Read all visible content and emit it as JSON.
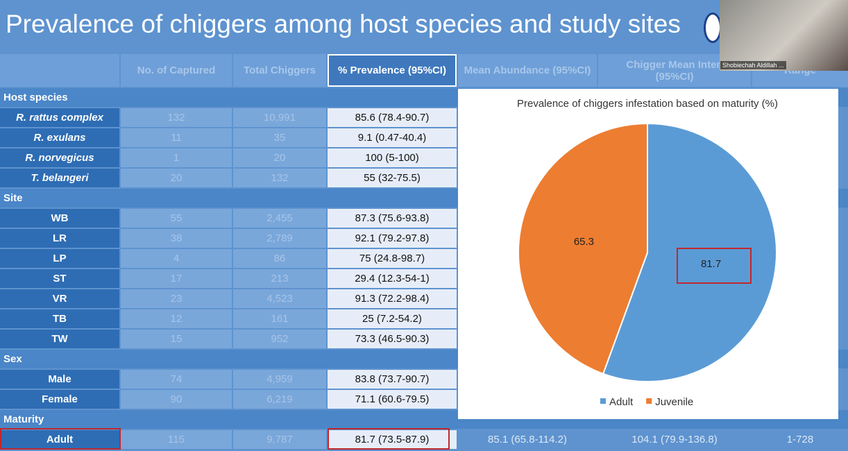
{
  "slide": {
    "title": "Prevalence of chiggers among host species and study sites"
  },
  "webcam": {
    "name": "Shobiechah Aldillah ..."
  },
  "table": {
    "header": [
      "No. of Captured",
      "Total Chiggers",
      "% Prevalence (95%CI)",
      "Mean Abundance (95%CI)",
      "Chigger Mean Inten",
      "(95%CI)",
      "Range"
    ],
    "rows": [
      [
        "Host species"
      ],
      [
        "R. rattus complex",
        "132",
        "10,991",
        "85.6 (78.4-90.7)"
      ],
      [
        "R. exulans",
        "11",
        "35",
        "9.1 (0.47-40.4)"
      ],
      [
        "R. norvegicus",
        "1",
        "20",
        "100 (5-100)"
      ],
      [
        "T. belangeri",
        "20",
        "132",
        "55 (32-75.5)"
      ],
      [
        "Site"
      ],
      [
        "WB",
        "55",
        "2,455",
        "87.3 (75.6-93.8)"
      ],
      [
        "LR",
        "38",
        "2,789",
        "92.1 (79.2-97.8)"
      ],
      [
        "LP",
        "4",
        "86",
        "75 (24.8-98.7)"
      ],
      [
        "ST",
        "17",
        "213",
        "29.4 (12.3-54-1)"
      ],
      [
        "VR",
        "23",
        "4,523",
        "91.3 (72.2-98.4)"
      ],
      [
        "TB",
        "12",
        "161",
        "25 (7.2-54.2)"
      ],
      [
        "TW",
        "15",
        "952",
        "73.3 (46.5-90.3)"
      ],
      [
        "Sex"
      ],
      [
        "Male",
        "74",
        "4,959",
        "83.8 (73.7-90.7)"
      ],
      [
        "Female",
        "90",
        "6,219",
        "71.1 (60.6-79.5)"
      ],
      [
        "Maturity"
      ],
      [
        "Adult",
        "115",
        "9,787",
        "81.7 (73.5-87.9)",
        "85.1 (65.8-114.2)",
        "104.1 (79.9-136.8)",
        "1-728"
      ]
    ]
  },
  "chart_data": {
    "type": "pie",
    "title": "Prevalence of chiggers infestation based on maturity (%)",
    "categories": [
      "Adult",
      "Juvenile"
    ],
    "values": [
      81.7,
      65.3
    ],
    "colors": [
      "#5b9bd5",
      "#ed7d31"
    ],
    "legend": "bottom"
  }
}
